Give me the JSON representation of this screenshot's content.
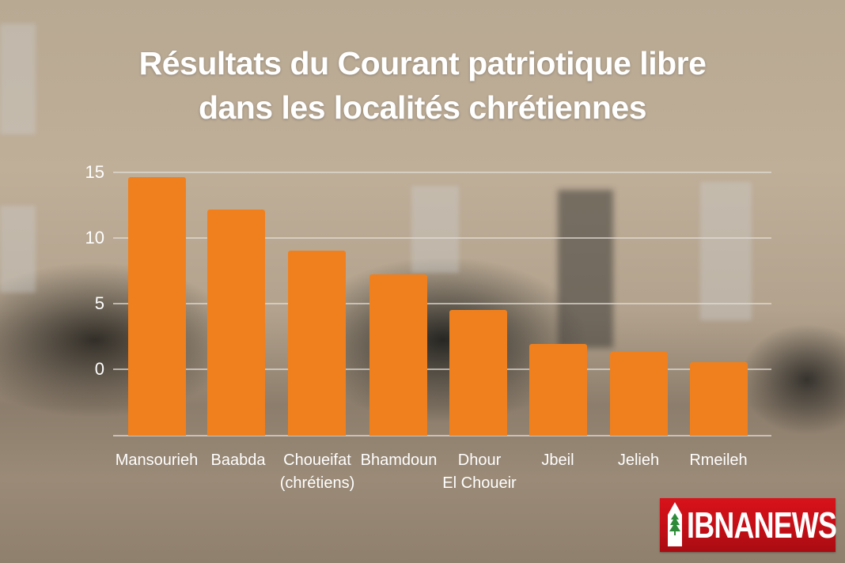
{
  "chart_data": {
    "type": "bar",
    "title": "Résultats du Courant patriotique libre dans les localités chrétiennes",
    "xlabel": "",
    "ylabel": "",
    "categories": [
      "Mansourieh",
      "Baabda",
      "Choueifat (chrétiens)",
      "Bhamdoun",
      "Dhour El Choueir",
      "Jbeil",
      "Jelieh",
      "Rmeileh"
    ],
    "values": [
      14.7,
      12.2,
      9.1,
      7.3,
      4.6,
      2.0,
      1.4,
      0.6
    ],
    "yticks": [
      0,
      5,
      10,
      15
    ],
    "ylim": [
      -5,
      15
    ],
    "grid": true,
    "legend": null,
    "bar_color": "#f0801e"
  },
  "title": {
    "line1": "Résultats du Courant patriotique libre",
    "line2": "dans les localités chrétiennes"
  },
  "axis": {
    "y_labels": [
      "15",
      "10",
      "5",
      "0"
    ]
  },
  "bars": [
    {
      "label_line1": "Mansourieh",
      "label_line2": "",
      "value": 14.7
    },
    {
      "label_line1": "Baabda",
      "label_line2": "",
      "value": 12.2
    },
    {
      "label_line1": "Choueifat",
      "label_line2": "(chrétiens)",
      "value": 9.1
    },
    {
      "label_line1": "Bhamdoun",
      "label_line2": "",
      "value": 7.3
    },
    {
      "label_line1": "Dhour",
      "label_line2": "El Choueir",
      "value": 4.6
    },
    {
      "label_line1": "Jbeil",
      "label_line2": "",
      "value": 2.0
    },
    {
      "label_line1": "Jelieh",
      "label_line2": "",
      "value": 1.4
    },
    {
      "label_line1": "Rmeileh",
      "label_line2": "",
      "value": 0.6
    }
  ],
  "logo": {
    "text": "IBNANEWS",
    "icon": "pen-nib-cedar-icon",
    "color": "#c8101a"
  }
}
